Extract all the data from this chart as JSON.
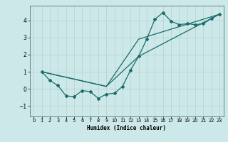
{
  "xlabel": "Humidex (Indice chaleur)",
  "background_color": "#cce8e8",
  "line_color": "#1a6b6b",
  "grid_color": "#b8d4d4",
  "xlim": [
    -0.5,
    23.5
  ],
  "ylim": [
    -1.6,
    4.85
  ],
  "xticks": [
    0,
    1,
    2,
    3,
    4,
    5,
    6,
    7,
    8,
    9,
    10,
    11,
    12,
    13,
    14,
    15,
    16,
    17,
    18,
    19,
    20,
    21,
    22,
    23
  ],
  "yticks": [
    -1,
    0,
    1,
    2,
    3,
    4
  ],
  "series1_x": [
    1,
    2,
    3,
    4,
    5,
    6,
    7,
    8,
    9,
    10,
    11,
    12,
    13,
    14,
    15,
    16,
    17,
    18,
    19,
    20,
    21,
    22,
    23
  ],
  "series1_y": [
    1.0,
    0.5,
    0.2,
    -0.4,
    -0.45,
    -0.1,
    -0.15,
    -0.55,
    -0.3,
    -0.25,
    0.15,
    1.1,
    1.9,
    2.9,
    4.05,
    4.45,
    3.95,
    3.75,
    3.8,
    3.75,
    3.8,
    4.1,
    4.35
  ],
  "series2_x": [
    1,
    9,
    13,
    23
  ],
  "series2_y": [
    1.0,
    0.15,
    2.9,
    4.35
  ],
  "series3_x": [
    1,
    9,
    13,
    23
  ],
  "series3_y": [
    1.0,
    0.15,
    1.9,
    4.35
  ]
}
